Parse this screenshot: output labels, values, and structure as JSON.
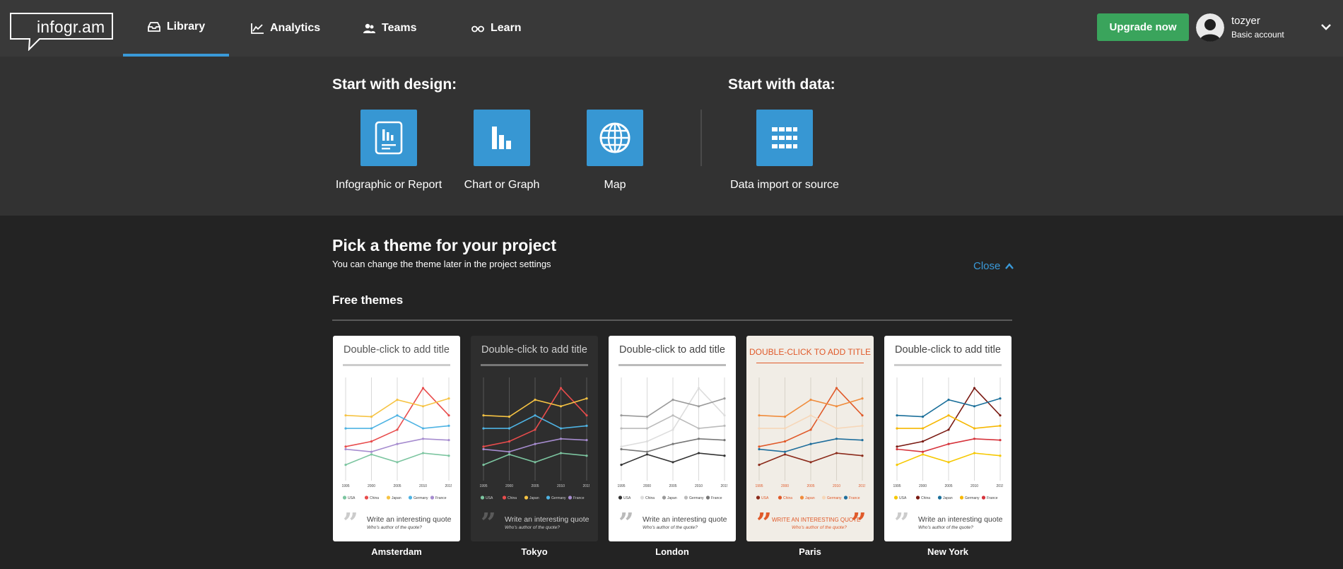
{
  "brand": {
    "logo_text": "infogr.am"
  },
  "nav": {
    "items": [
      {
        "label": "Library",
        "icon": "library-icon"
      },
      {
        "label": "Analytics",
        "icon": "analytics-icon"
      },
      {
        "label": "Teams",
        "icon": "teams-icon"
      },
      {
        "label": "Learn",
        "icon": "learn-icon"
      }
    ],
    "active": "Library"
  },
  "account": {
    "upgrade_label": "Upgrade now",
    "username": "tozyer",
    "plan": "Basic account"
  },
  "start": {
    "design_heading": "Start with design:",
    "data_heading": "Start with data:",
    "tiles": [
      {
        "label": "Infographic or Report",
        "icon": "report-icon"
      },
      {
        "label": "Chart or Graph",
        "icon": "bar-chart-icon"
      },
      {
        "label": "Map",
        "icon": "globe-icon"
      },
      {
        "label": "Data import or source",
        "icon": "grid-icon"
      }
    ]
  },
  "themes": {
    "heading": "Pick a theme for your project",
    "subheading": "You can change the theme later in the project settings",
    "close_label": "Close",
    "free_heading": "Free themes",
    "sample": {
      "years": [
        "1995",
        "2000",
        "2005",
        "2010",
        "2015"
      ],
      "legend": [
        "USA",
        "China",
        "Japan",
        "Germany",
        "France"
      ],
      "values": {
        "USA": [
          10,
          18,
          12,
          19,
          17
        ],
        "China": [
          24,
          28,
          37,
          69,
          48
        ],
        "Japan": [
          48,
          47,
          60,
          55,
          61
        ],
        "Germany": [
          38,
          38,
          48,
          38,
          40
        ],
        "France": [
          22,
          20,
          26,
          30,
          29
        ]
      }
    },
    "cards": [
      {
        "name": "Amsterdam",
        "title": "Double-click to add title",
        "quote": "Write an interesting quote",
        "author": "Who's author of the quote?",
        "bg": "#ffffff",
        "title_color": "#555555",
        "rule_color": "#cccccc",
        "grid_color": "#d9d9d9",
        "text_color": "#444444",
        "quote_mark_color": "#cccccc",
        "series_colors": [
          "#7cc5a0",
          "#e84c4c",
          "#f6c343",
          "#4eb3e3",
          "#a68ccf"
        ]
      },
      {
        "name": "Tokyo",
        "title": "Double-click to add title",
        "quote": "Write an interesting quote",
        "author": "Who's author of the quote?",
        "bg": "#2e2e2e",
        "title_color": "#cfcfcf",
        "rule_color": "#777777",
        "grid_color": "#555555",
        "text_color": "#cfcfcf",
        "quote_mark_color": "#5a5a5a",
        "series_colors": [
          "#7cc5a0",
          "#e84c4c",
          "#f6c343",
          "#4eb3e3",
          "#a68ccf"
        ]
      },
      {
        "name": "London",
        "title": "Double-click to add title",
        "quote": "Write an interesting quote",
        "author": "Who's author of the quote?",
        "bg": "#ffffff",
        "title_color": "#444444",
        "rule_color": "#bbbbbb",
        "grid_color": "#d9d9d9",
        "text_color": "#444444",
        "quote_mark_color": "#bbbbbb",
        "series_colors": [
          "#333333",
          "#dddddd",
          "#999999",
          "#bbbbbb",
          "#777777"
        ]
      },
      {
        "name": "Paris",
        "title": "DOUBLE-CLICK TO ADD TITLE",
        "quote": "WRITE AN INTERESTING QUOTE",
        "author": "Who's author of the quote?",
        "bg": "#f1ede6",
        "title_color": "#e05a2a",
        "rule_color": "#e05a2a",
        "grid_color": "#d8d2c8",
        "text_color": "#e05a2a",
        "quote_mark_color": "#e05a2a",
        "series_colors": [
          "#8b2a1a",
          "#e05a2a",
          "#f08c3c",
          "#f6d7b9",
          "#1f6e9c"
        ]
      },
      {
        "name": "New York",
        "title": "Double-click to add title",
        "quote": "Write an interesting quote",
        "author": "Who's author of the quote?",
        "bg": "#ffffff",
        "title_color": "#444444",
        "rule_color": "#cccccc",
        "grid_color": "#d9d9d9",
        "text_color": "#444444",
        "quote_mark_color": "#cccccc",
        "series_colors": [
          "#f6c800",
          "#7a1a12",
          "#1a6f9a",
          "#f6b700",
          "#d6343c"
        ]
      }
    ]
  }
}
